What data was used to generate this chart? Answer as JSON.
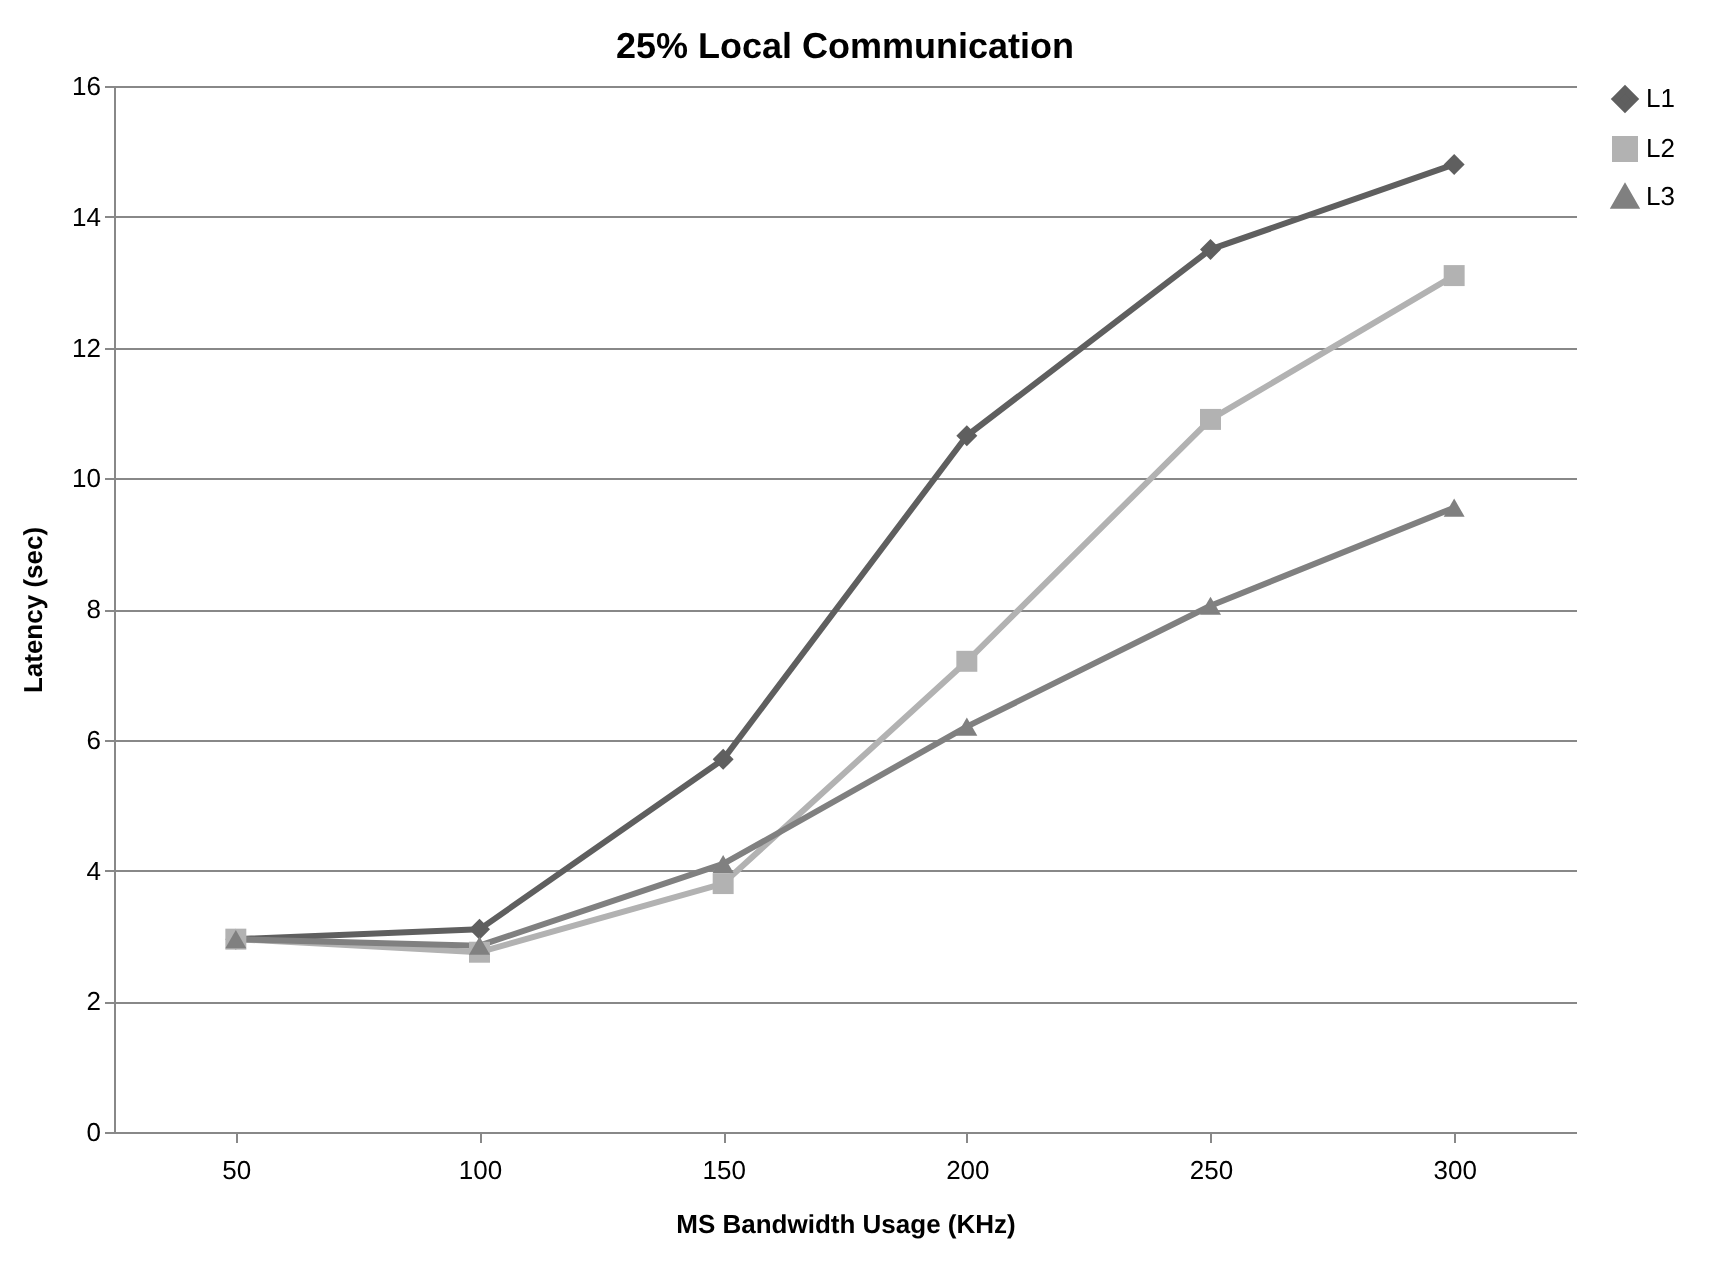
{
  "chart_data": {
    "type": "line",
    "title": "25% Local Communication",
    "xlabel": "MS Bandwidth Usage (KHz)",
    "ylabel": "Latency (sec)",
    "categories": [
      "50",
      "100",
      "150",
      "200",
      "250",
      "300"
    ],
    "series": [
      {
        "name": "L1",
        "color": "#5f5f5f",
        "marker": "diamond",
        "values": [
          2.95,
          3.1,
          5.7,
          10.65,
          13.5,
          14.8
        ]
      },
      {
        "name": "L2",
        "color": "#b2b2b2",
        "marker": "square",
        "values": [
          2.95,
          2.75,
          3.8,
          7.2,
          10.9,
          13.1
        ]
      },
      {
        "name": "L3",
        "color": "#808080",
        "marker": "triangle",
        "values": [
          2.95,
          2.85,
          4.1,
          6.2,
          8.05,
          9.55
        ]
      }
    ],
    "ylim": [
      0,
      16
    ],
    "yticks": [
      0,
      2,
      4,
      6,
      8,
      10,
      12,
      14,
      16
    ],
    "grid": "y",
    "legend": "right"
  }
}
